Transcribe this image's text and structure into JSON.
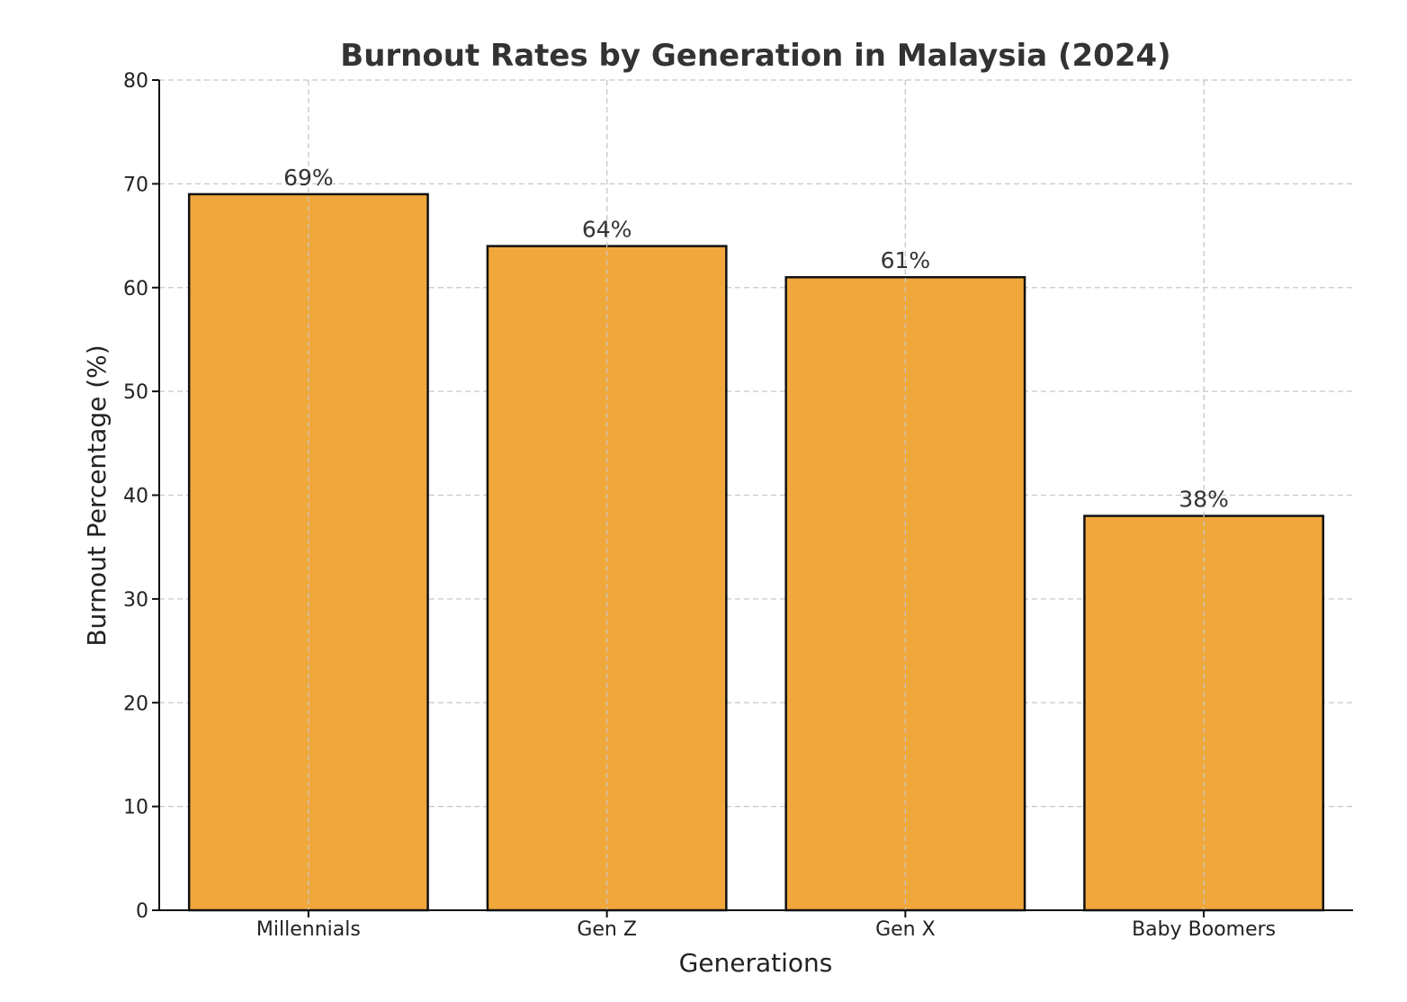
{
  "chart_data": {
    "type": "bar",
    "title": "Burnout Rates by Generation in Malaysia (2024)",
    "xlabel": "Generations",
    "ylabel": "Burnout Percentage (%)",
    "categories": [
      "Millennials",
      "Gen Z",
      "Gen X",
      "Baby Boomers"
    ],
    "values": [
      69,
      64,
      61,
      38
    ],
    "data_labels": [
      "69%",
      "64%",
      "61%",
      "38%"
    ],
    "ylim": [
      0,
      80
    ],
    "yticks": [
      0,
      10,
      20,
      30,
      40,
      50,
      60,
      70,
      80
    ],
    "grid": true,
    "bar_color": "#F0A83C",
    "edge_color": "#111111"
  }
}
